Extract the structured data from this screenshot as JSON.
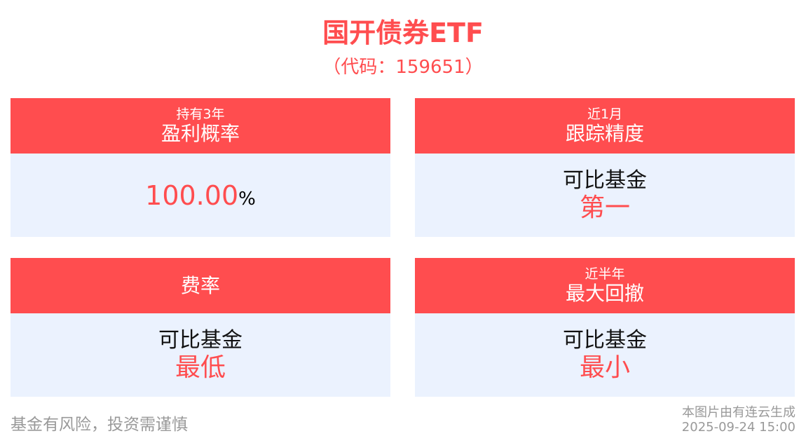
{
  "header": {
    "title": "国开债券ETF",
    "code": "（代码：159651）"
  },
  "cards": [
    {
      "sub": "持有3年",
      "title": "盈利概率",
      "value": "100.00",
      "unit": "%"
    },
    {
      "sub": "近1月",
      "title": "跟踪精度",
      "label": "可比基金",
      "value": "第一"
    },
    {
      "sub": "",
      "title": "费率",
      "label": "可比基金",
      "value": "最低"
    },
    {
      "sub": "近半年",
      "title": "最大回撤",
      "label": "可比基金",
      "value": "最小"
    }
  ],
  "footer": {
    "risk": "基金有风险，投资需谨慎",
    "generated": "本图片由有连云生成",
    "datetime": "2025-09-24 15:00"
  },
  "colors": {
    "accent": "#ff4d4f",
    "card_bg": "#ebf2fe"
  }
}
